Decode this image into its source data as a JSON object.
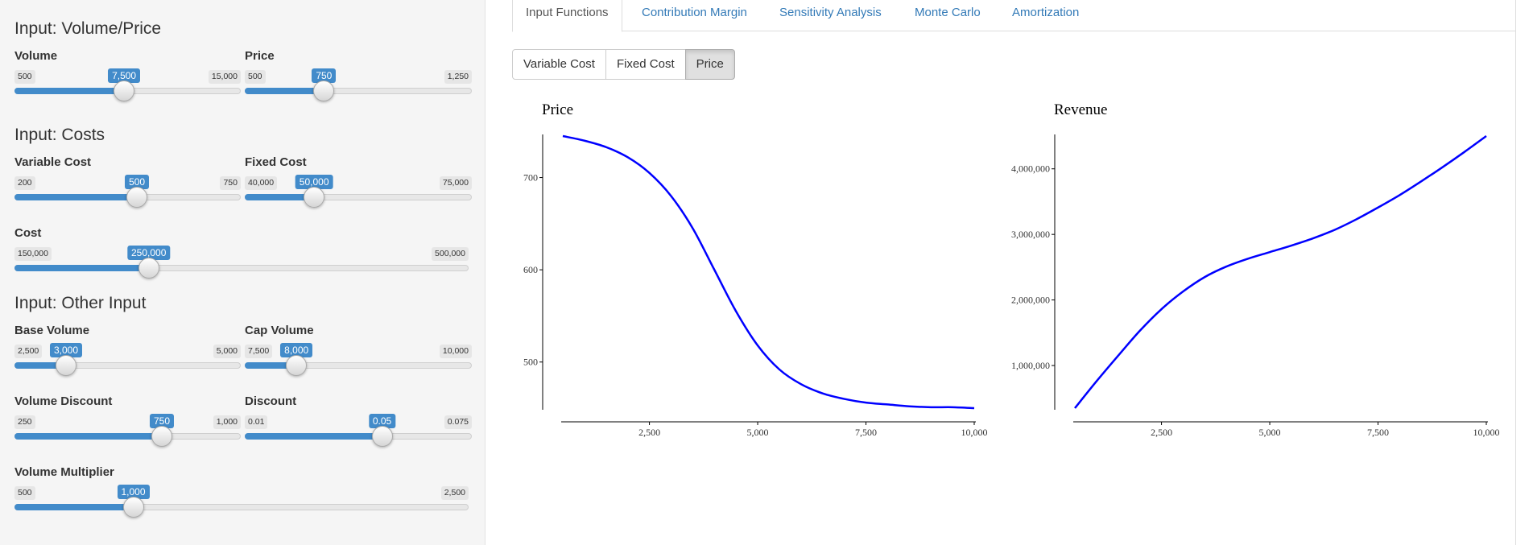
{
  "sidebar": {
    "sections": {
      "volume_price": "Input: Volume/Price",
      "costs": "Input: Costs",
      "other": "Input: Other Input"
    },
    "sliders": {
      "volume": {
        "label": "Volume",
        "min": 500,
        "max": 15000,
        "value": 7500,
        "min_text": "500",
        "max_text": "15,000",
        "value_text": "7,500"
      },
      "price": {
        "label": "Price",
        "min": 500,
        "max": 1250,
        "value": 750,
        "min_text": "500",
        "max_text": "1,250",
        "value_text": "750"
      },
      "variable_cost": {
        "label": "Variable Cost",
        "min": 200,
        "max": 750,
        "value": 500,
        "min_text": "200",
        "max_text": "750",
        "value_text": "500"
      },
      "fixed_cost": {
        "label": "Fixed Cost",
        "min": 40000,
        "max": 75000,
        "value": 50000,
        "min_text": "40,000",
        "max_text": "75,000",
        "value_text": "50,000"
      },
      "cost": {
        "label": "Cost",
        "min": 150000,
        "max": 500000,
        "value": 250000,
        "min_text": "150,000",
        "max_text": "500,000",
        "value_text": "250,000"
      },
      "base_volume": {
        "label": "Base Volume",
        "min": 2500,
        "max": 5000,
        "value": 3000,
        "min_text": "2,500",
        "max_text": "5,000",
        "value_text": "3,000"
      },
      "cap_volume": {
        "label": "Cap Volume",
        "min": 7500,
        "max": 10000,
        "value": 8000,
        "min_text": "7,500",
        "max_text": "10,000",
        "value_text": "8,000"
      },
      "volume_discount": {
        "label": "Volume Discount",
        "min": 250,
        "max": 1000,
        "value": 750,
        "min_text": "250",
        "max_text": "1,000",
        "value_text": "750"
      },
      "discount": {
        "label": "Discount",
        "min": 0.01,
        "max": 0.075,
        "value": 0.05,
        "min_text": "0.01",
        "max_text": "0.075",
        "value_text": "0.05"
      },
      "volume_multiplier": {
        "label": "Volume Multiplier",
        "min": 500,
        "max": 2500,
        "value": 1000,
        "min_text": "500",
        "max_text": "2,500",
        "value_text": "1,000"
      }
    }
  },
  "tabs": [
    {
      "label": "Input Functions",
      "active": true
    },
    {
      "label": "Contribution Margin",
      "active": false
    },
    {
      "label": "Sensitivity Analysis",
      "active": false
    },
    {
      "label": "Monte Carlo",
      "active": false
    },
    {
      "label": "Amortization",
      "active": false
    }
  ],
  "buttons": [
    {
      "label": "Variable Cost",
      "active": false
    },
    {
      "label": "Fixed Cost",
      "active": false
    },
    {
      "label": "Price",
      "active": true
    }
  ],
  "colors": {
    "accent": "#428bca",
    "line": "#0000ff"
  },
  "chart_data": [
    {
      "type": "line",
      "title": "Price",
      "xlabel": "",
      "ylabel": "",
      "xlim": [
        500,
        10000
      ],
      "ylim": [
        450,
        745
      ],
      "xticks": [
        2500,
        5000,
        7500,
        10000
      ],
      "xtick_labels": [
        "2,500",
        "5,000",
        "7,500",
        "10,000"
      ],
      "yticks": [
        500,
        600,
        700
      ],
      "ytick_labels": [
        "500",
        "600",
        "700"
      ],
      "series": [
        {
          "name": "Price",
          "x": [
            500,
            1000,
            1500,
            2000,
            2500,
            3000,
            3500,
            4000,
            4500,
            5000,
            5500,
            6000,
            6500,
            7000,
            7500,
            8000,
            8500,
            9000,
            9500,
            10000
          ],
          "values": [
            745,
            740,
            733,
            722,
            705,
            680,
            645,
            600,
            555,
            518,
            492,
            476,
            466,
            460,
            456,
            454,
            452,
            451,
            451,
            450
          ]
        }
      ]
    },
    {
      "type": "line",
      "title": "Revenue",
      "xlabel": "",
      "ylabel": "",
      "xlim": [
        500,
        10000
      ],
      "ylim": [
        350000,
        4500000
      ],
      "xticks": [
        2500,
        5000,
        7500,
        10000
      ],
      "xtick_labels": [
        "2,500",
        "5,000",
        "7,500",
        "10,000"
      ],
      "yticks": [
        1000000,
        2000000,
        3000000,
        4000000
      ],
      "ytick_labels": [
        "1,000,000",
        "2,000,000",
        "3,000,000",
        "4,000,000"
      ],
      "series": [
        {
          "name": "Revenue",
          "x": [
            500,
            1000,
            1500,
            2000,
            2500,
            3000,
            3500,
            4000,
            4500,
            5000,
            5500,
            6000,
            6500,
            7000,
            7500,
            8000,
            8500,
            9000,
            9500,
            10000
          ],
          "values": [
            350000,
            760000,
            1150000,
            1530000,
            1860000,
            2130000,
            2350000,
            2510000,
            2630000,
            2730000,
            2830000,
            2940000,
            3070000,
            3230000,
            3410000,
            3600000,
            3810000,
            4030000,
            4260000,
            4500000
          ]
        }
      ]
    }
  ]
}
